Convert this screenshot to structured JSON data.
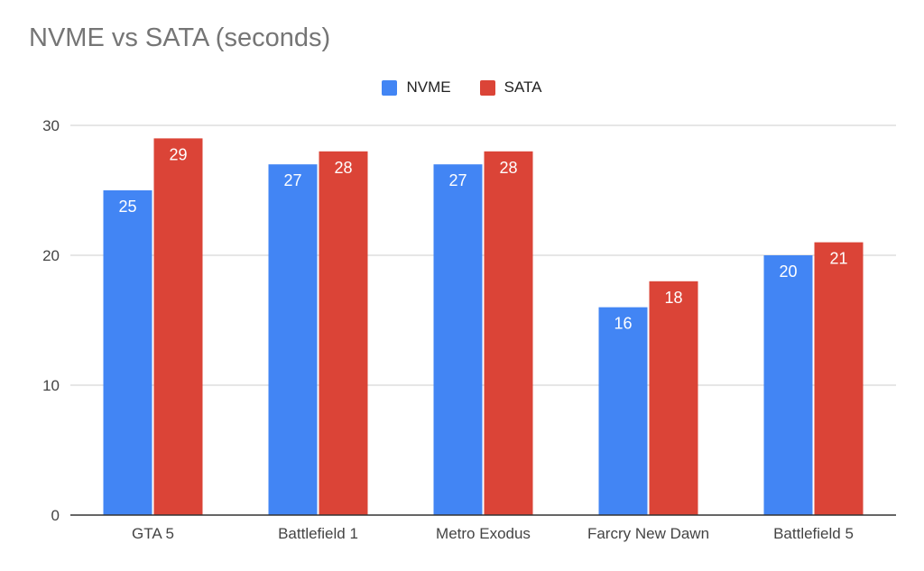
{
  "chart_data": {
    "type": "bar",
    "title": "NVME vs SATA (seconds)",
    "categories": [
      "GTA 5",
      "Battlefield 1",
      "Metro Exodus",
      "Farcry New Dawn",
      "Battlefield 5"
    ],
    "series": [
      {
        "name": "NVME",
        "values": [
          25,
          27,
          27,
          16,
          20
        ],
        "color": "#4285f4"
      },
      {
        "name": "SATA",
        "values": [
          29,
          28,
          28,
          18,
          21
        ],
        "color": "#db4437"
      }
    ],
    "ylim": [
      0,
      30
    ],
    "yticks": [
      0,
      10,
      20,
      30
    ],
    "xlabel": "",
    "ylabel": "",
    "grid": true,
    "legend_position": "top-center",
    "data_labels": true
  }
}
